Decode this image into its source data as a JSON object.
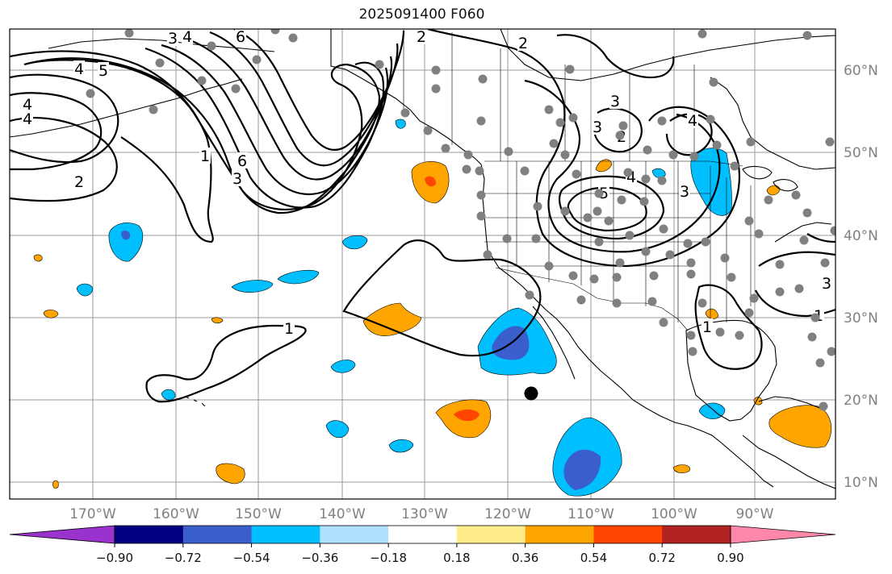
{
  "title": "2025091400 F060",
  "lat_labels": [
    "60°N",
    "50°N",
    "40°N",
    "30°N",
    "20°N",
    "10°N"
  ],
  "lon_labels": [
    "170°W",
    "160°W",
    "150°W",
    "140°W",
    "130°W",
    "120°W",
    "110°W",
    "100°W",
    "90°W"
  ],
  "colorbar": {
    "ticks": [
      "−0.90",
      "−0.72",
      "−0.54",
      "−0.36",
      "−0.18",
      "0.18",
      "0.36",
      "0.54",
      "0.72",
      "0.90"
    ],
    "colors": [
      "#9a32cd",
      "#000080",
      "#3a5fcd",
      "#00bfff",
      "#b0e2ff",
      "#ffffff",
      "#ffec8b",
      "#ffa500",
      "#ff4500",
      "#b22222",
      "#ff88aa"
    ]
  },
  "contour_labels": [
    "4",
    "5",
    "6",
    "2",
    "3",
    "4",
    "2",
    "3",
    "1",
    "6",
    "3",
    "2",
    "4",
    "3",
    "2",
    "4",
    "5",
    "3",
    "4",
    "4",
    "1",
    "1",
    "3",
    "1"
  ],
  "colors": {
    "grid": "#9a9a9a",
    "station": "#808080",
    "contour": "#000000"
  }
}
